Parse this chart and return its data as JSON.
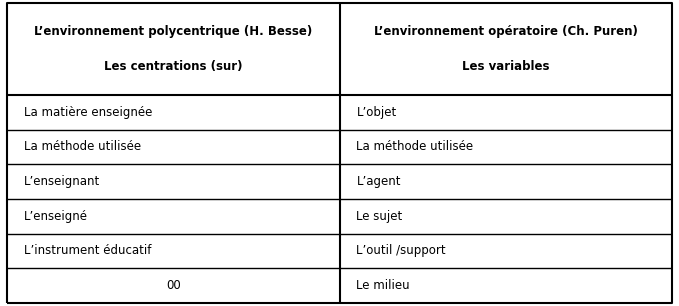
{
  "col1_header_line1": "L’environnement polycentrique (H. Besse)",
  "col1_header_line2": "Les centrations (sur)",
  "col2_header_line1": "L’environnement opératoire (Ch. Puren)",
  "col2_header_line2": "Les variables",
  "rows": [
    [
      "La matière enseignée",
      "L’objet"
    ],
    [
      "La méthode utilisée",
      "La méthode utilisée"
    ],
    [
      "L’enseignant",
      "L’agent"
    ],
    [
      "L’enseigné",
      "Le sujet"
    ],
    [
      "L’instrument éducatif",
      "L’outil /support"
    ],
    [
      "00",
      "Le milieu"
    ]
  ],
  "bg_color": "#ffffff",
  "border_color": "#000000",
  "text_color": "#000000",
  "header_fontsize": 8.5,
  "body_fontsize": 8.5,
  "col_split": 0.5,
  "fig_width": 6.79,
  "fig_height": 3.06,
  "dpi": 100
}
